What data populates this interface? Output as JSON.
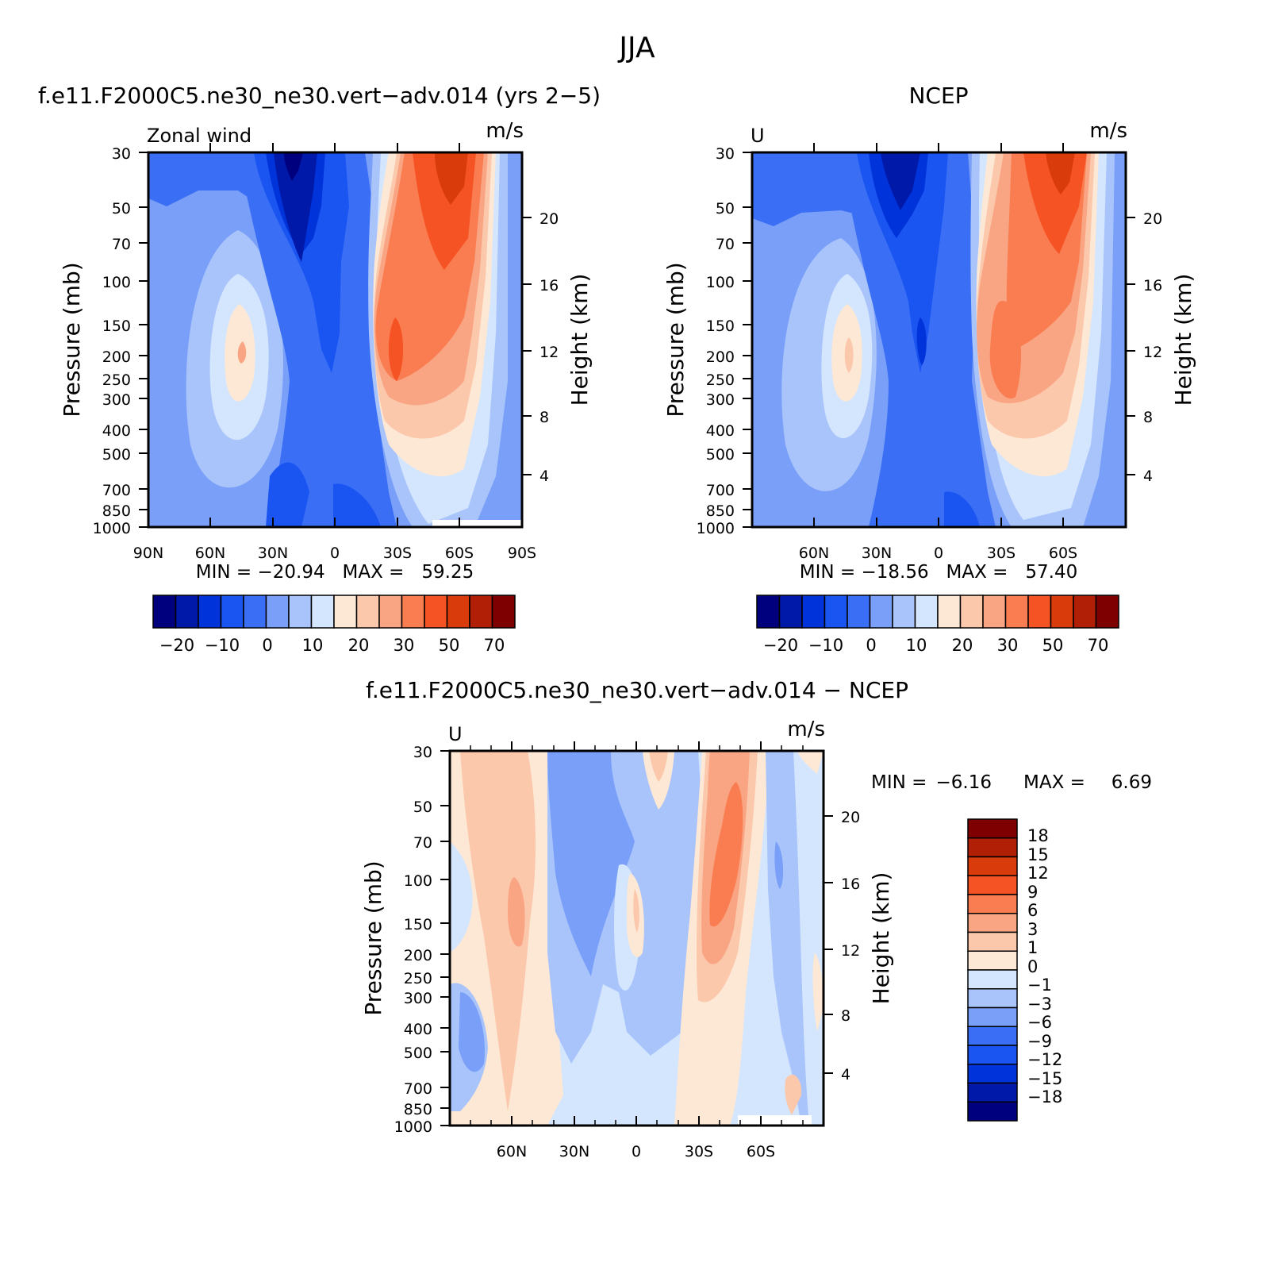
{
  "figure": {
    "title": "JJA",
    "colors": {
      "abs_scale": [
        "#00007f",
        "#0019a8",
        "#0033d9",
        "#1a55f2",
        "#3a6ff5",
        "#7a9ff8",
        "#a9c4fb",
        "#d4e6fd",
        "#fde8d5",
        "#fbc8ac",
        "#f9a583",
        "#f97d51",
        "#f65324",
        "#d93b0b",
        "#b01f06",
        "#7f0000"
      ],
      "diff_scale": [
        "#00007f",
        "#0019a8",
        "#0033d9",
        "#1a55f2",
        "#3a6ff5",
        "#7a9ff8",
        "#a9c4fb",
        "#d4e6fd",
        "#fde8d5",
        "#fbc8ac",
        "#f9a583",
        "#f97d51",
        "#f65324",
        "#d93b0b",
        "#b01f06",
        "#7f0000"
      ]
    }
  },
  "chart_data": [
    {
      "type": "contour",
      "title": "f.e11.F2000C5.ne30_ne30.vert−adv.014 (yrs 2−5)",
      "left_label": "Zonal wind",
      "units": "m/s",
      "ylabel": "Pressure (mb)",
      "ylabel_right": "Height (km)",
      "yticks": [
        "30",
        "50",
        "70",
        "100",
        "150",
        "200",
        "250",
        "300",
        "400",
        "500",
        "700",
        "850",
        "1000"
      ],
      "yticks_right": [
        "20",
        "16",
        "12",
        "8",
        "4"
      ],
      "xticks": [
        "90N",
        "60N",
        "30N",
        "0",
        "30S",
        "60S",
        "90S"
      ],
      "min_max": "MIN = −20.94   MAX =   59.25",
      "colorbar_labels": [
        "−20",
        "−10",
        "0",
        "10",
        "20",
        "30",
        "50",
        "70"
      ]
    },
    {
      "type": "contour",
      "title": "NCEP",
      "left_label": "U",
      "units": "m/s",
      "ylabel": "Pressure (mb)",
      "ylabel_right": "Height (km)",
      "yticks": [
        "30",
        "50",
        "70",
        "100",
        "150",
        "200",
        "250",
        "300",
        "400",
        "500",
        "700",
        "850",
        "1000"
      ],
      "yticks_right": [
        "20",
        "16",
        "12",
        "8",
        "4"
      ],
      "xticks": [
        "60N",
        "30N",
        "0",
        "30S",
        "60S"
      ],
      "min_max": "MIN = −18.56   MAX =   57.40",
      "colorbar_labels": [
        "−20",
        "−10",
        "0",
        "10",
        "20",
        "30",
        "50",
        "70"
      ]
    },
    {
      "type": "contour",
      "title": "f.e11.F2000C5.ne30_ne30.vert−adv.014 − NCEP",
      "left_label": "U",
      "units": "m/s",
      "ylabel": "Pressure (mb)",
      "ylabel_right": "Height (km)",
      "yticks": [
        "30",
        "50",
        "70",
        "100",
        "150",
        "200",
        "250",
        "300",
        "400",
        "500",
        "700",
        "850",
        "1000"
      ],
      "yticks_right": [
        "20",
        "16",
        "12",
        "8",
        "4"
      ],
      "xticks": [
        "60N",
        "30N",
        "0",
        "30S",
        "60S"
      ],
      "min_label": "MIN =",
      "min_value": "−6.16",
      "max_label": "MAX =",
      "max_value": "6.69",
      "colorbar_labels": [
        "18",
        "15",
        "12",
        "9",
        "6",
        "3",
        "1",
        "0",
        "−1",
        "−3",
        "−6",
        "−9",
        "−12",
        "−15",
        "−18"
      ]
    }
  ]
}
